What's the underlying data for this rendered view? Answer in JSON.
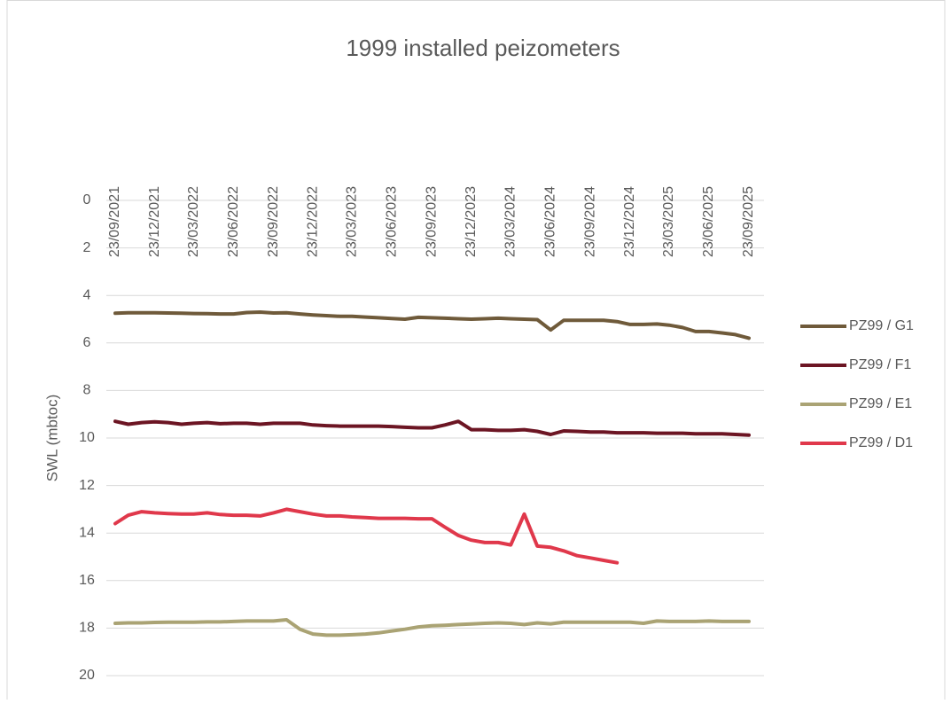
{
  "chart_data": {
    "type": "line",
    "title": "1999 installed peizometers",
    "ylabel": "SWL (mbtoc)",
    "y_reversed": true,
    "grid": true,
    "legend": "right",
    "ylim": [
      0,
      20
    ],
    "yticks": [
      0,
      2,
      4,
      6,
      8,
      10,
      12,
      14,
      16,
      18,
      20
    ],
    "xlim": [
      "2021-09-23",
      "2025-09-23"
    ],
    "xticks": [
      {
        "value": "2021-09-23",
        "label": "23/09/2021"
      },
      {
        "value": "2021-12-23",
        "label": "23/12/2021"
      },
      {
        "value": "2022-03-23",
        "label": "23/03/2022"
      },
      {
        "value": "2022-06-23",
        "label": "23/06/2022"
      },
      {
        "value": "2022-09-23",
        "label": "23/09/2022"
      },
      {
        "value": "2022-12-23",
        "label": "23/12/2022"
      },
      {
        "value": "2023-03-23",
        "label": "23/03/2023"
      },
      {
        "value": "2023-06-23",
        "label": "23/06/2023"
      },
      {
        "value": "2023-09-23",
        "label": "23/09/2023"
      },
      {
        "value": "2023-12-23",
        "label": "23/12/2023"
      },
      {
        "value": "2024-03-23",
        "label": "23/03/2024"
      },
      {
        "value": "2024-06-23",
        "label": "23/06/2024"
      },
      {
        "value": "2024-09-23",
        "label": "23/09/2024"
      },
      {
        "value": "2024-12-23",
        "label": "23/12/2024"
      },
      {
        "value": "2025-03-23",
        "label": "23/03/2025"
      },
      {
        "value": "2025-06-23",
        "label": "23/06/2025"
      },
      {
        "value": "2025-09-23",
        "label": "23/09/2025"
      }
    ],
    "x": [
      "2021-09-23",
      "2021-10-23",
      "2021-11-23",
      "2021-12-23",
      "2022-01-23",
      "2022-02-23",
      "2022-03-23",
      "2022-04-23",
      "2022-05-23",
      "2022-06-23",
      "2022-07-23",
      "2022-08-23",
      "2022-09-23",
      "2022-10-23",
      "2022-11-23",
      "2022-12-23",
      "2023-01-23",
      "2023-02-23",
      "2023-03-23",
      "2023-04-23",
      "2023-05-23",
      "2023-06-23",
      "2023-07-23",
      "2023-08-23",
      "2023-09-23",
      "2023-10-23",
      "2023-11-23",
      "2023-12-23",
      "2024-01-23",
      "2024-02-23",
      "2024-03-23",
      "2024-04-23",
      "2024-05-23",
      "2024-06-23",
      "2024-07-23",
      "2024-08-23",
      "2024-09-23",
      "2024-10-23",
      "2024-11-23",
      "2024-12-23",
      "2025-01-23",
      "2025-02-23",
      "2025-03-23",
      "2025-04-23",
      "2025-05-23",
      "2025-06-23",
      "2025-07-23",
      "2025-08-23",
      "2025-09-23"
    ],
    "series": [
      {
        "name": "PZ99 / G1",
        "color": "#6f5a3a",
        "values": [
          4.75,
          4.73,
          4.73,
          4.73,
          4.74,
          4.75,
          4.76,
          4.77,
          4.78,
          4.78,
          4.72,
          4.7,
          4.74,
          4.73,
          4.78,
          4.82,
          4.85,
          4.88,
          4.88,
          4.91,
          4.94,
          4.97,
          5.0,
          4.92,
          4.94,
          4.96,
          4.98,
          5.0,
          4.98,
          4.96,
          4.98,
          5.0,
          5.02,
          5.45,
          5.05,
          5.05,
          5.05,
          5.05,
          5.1,
          5.22,
          5.22,
          5.2,
          5.25,
          5.35,
          5.52,
          5.52,
          5.58,
          5.65,
          5.8
        ]
      },
      {
        "name": "PZ99 / F1",
        "color": "#6c1523",
        "values": [
          9.3,
          9.42,
          9.35,
          9.32,
          9.35,
          9.42,
          9.38,
          9.35,
          9.4,
          9.38,
          9.38,
          9.42,
          9.38,
          9.38,
          9.38,
          9.45,
          9.48,
          9.5,
          9.5,
          9.5,
          9.5,
          9.52,
          9.55,
          9.57,
          9.57,
          9.45,
          9.3,
          9.65,
          9.65,
          9.68,
          9.68,
          9.65,
          9.72,
          9.85,
          9.7,
          9.72,
          9.75,
          9.75,
          9.78,
          9.78,
          9.78,
          9.8,
          9.8,
          9.8,
          9.82,
          9.82,
          9.82,
          9.85,
          9.88
        ]
      },
      {
        "name": "PZ99 / E1",
        "color": "#aaa374",
        "values": [
          17.8,
          17.78,
          17.78,
          17.76,
          17.75,
          17.75,
          17.75,
          17.74,
          17.74,
          17.72,
          17.7,
          17.7,
          17.7,
          17.65,
          18.05,
          18.25,
          18.3,
          18.3,
          18.28,
          18.25,
          18.2,
          18.12,
          18.05,
          17.95,
          17.9,
          17.88,
          17.85,
          17.83,
          17.8,
          17.78,
          17.8,
          17.85,
          17.78,
          17.82,
          17.75,
          17.75,
          17.75,
          17.75,
          17.75,
          17.75,
          17.8,
          17.7,
          17.72,
          17.72,
          17.72,
          17.7,
          17.72,
          17.72,
          17.72
        ]
      },
      {
        "name": "PZ99 / D1",
        "color": "#e0384b",
        "values": [
          13.6,
          13.25,
          13.1,
          13.15,
          13.18,
          13.2,
          13.2,
          13.15,
          13.22,
          13.25,
          13.25,
          13.28,
          13.15,
          13.0,
          13.1,
          13.2,
          13.28,
          13.28,
          13.32,
          13.35,
          13.38,
          13.38,
          13.38,
          13.4,
          13.4,
          13.75,
          14.1,
          14.3,
          14.4,
          14.4,
          14.5,
          13.2,
          14.55,
          14.6,
          14.75,
          14.95,
          15.05,
          15.15,
          15.25,
          null,
          null,
          null,
          null,
          null,
          null,
          null,
          null,
          null,
          null
        ]
      }
    ]
  }
}
